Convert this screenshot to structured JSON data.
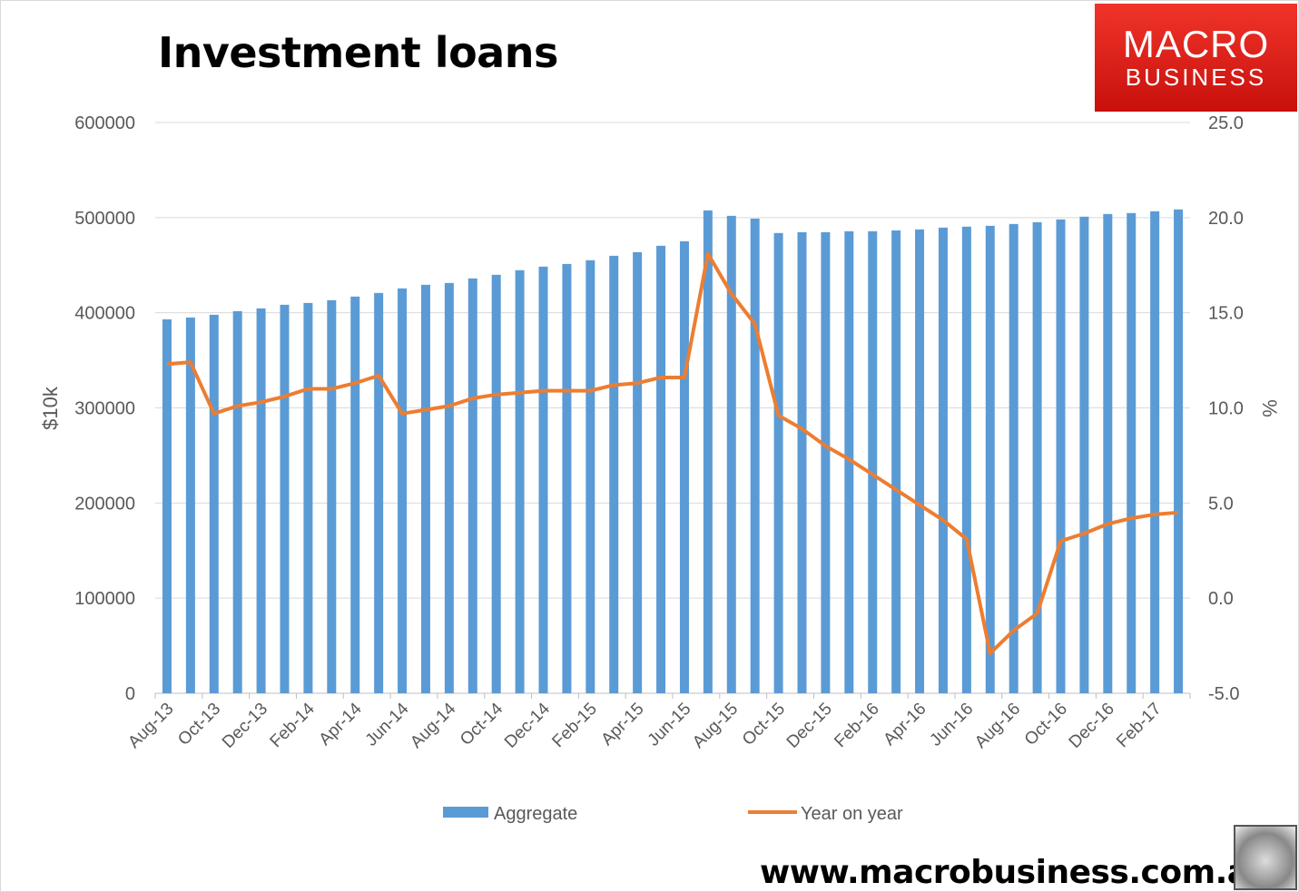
{
  "chart_data": {
    "type": "bar+line",
    "title": "Investment loans",
    "ylabel": "$10k",
    "y2label": "%",
    "ylim": [
      0,
      600000
    ],
    "yticks": [
      0,
      100000,
      200000,
      300000,
      400000,
      500000,
      600000
    ],
    "y2lim": [
      -5,
      25
    ],
    "y2ticks": [
      "-5.0",
      "0.0",
      "5.0",
      "10.0",
      "15.0",
      "20.0",
      "25.0"
    ],
    "grid": true,
    "legend": "bottom",
    "categories": [
      "Aug-13",
      "Sep-13",
      "Oct-13",
      "Nov-13",
      "Dec-13",
      "Jan-14",
      "Feb-14",
      "Mar-14",
      "Apr-14",
      "May-14",
      "Jun-14",
      "Jul-14",
      "Aug-14",
      "Sep-14",
      "Oct-14",
      "Nov-14",
      "Dec-14",
      "Jan-15",
      "Feb-15",
      "Mar-15",
      "Apr-15",
      "May-15",
      "Jun-15",
      "Jul-15",
      "Aug-15",
      "Sep-15",
      "Oct-15",
      "Nov-15",
      "Dec-15",
      "Jan-16",
      "Feb-16",
      "Mar-16",
      "Apr-16",
      "May-16",
      "Jun-16",
      "Jul-16",
      "Aug-16",
      "Sep-16",
      "Oct-16",
      "Nov-16",
      "Dec-16",
      "Jan-17",
      "Feb-17",
      "Mar-17"
    ],
    "series": [
      {
        "name": "Aggregate",
        "type": "bar",
        "axis": "left",
        "color": "#5b9bd5",
        "values": [
          393100,
          395000,
          397900,
          401700,
          404600,
          408400,
          410300,
          413200,
          417000,
          420800,
          425600,
          429400,
          431300,
          436100,
          439900,
          444700,
          448500,
          451300,
          455200,
          459900,
          463700,
          470400,
          475200,
          507600,
          501900,
          499000,
          483800,
          484700,
          484700,
          485700,
          485700,
          486600,
          487600,
          489500,
          490500,
          491400,
          493300,
          495200,
          498100,
          501000,
          503800,
          504800,
          506700,
          508600
        ]
      },
      {
        "name": "Year on year",
        "type": "line",
        "axis": "right",
        "color": "#ed7d31",
        "values": [
          12.3,
          12.4,
          9.7,
          10.1,
          10.3,
          10.6,
          11.0,
          11.0,
          11.3,
          11.7,
          9.7,
          9.9,
          10.1,
          10.5,
          10.7,
          10.8,
          10.9,
          10.9,
          10.9,
          11.2,
          11.3,
          11.6,
          11.6,
          18.1,
          16.0,
          14.4,
          9.6,
          8.9,
          8.0,
          7.3,
          6.5,
          5.7,
          4.9,
          4.1,
          3.1,
          -2.9,
          -1.7,
          -0.8,
          3.0,
          3.4,
          3.9,
          4.2,
          4.4,
          4.5
        ]
      }
    ]
  },
  "logo": {
    "line1": "MACRO",
    "line2": "BUSINESS"
  },
  "footer": {
    "url": "www.macrobusiness.com.au"
  }
}
